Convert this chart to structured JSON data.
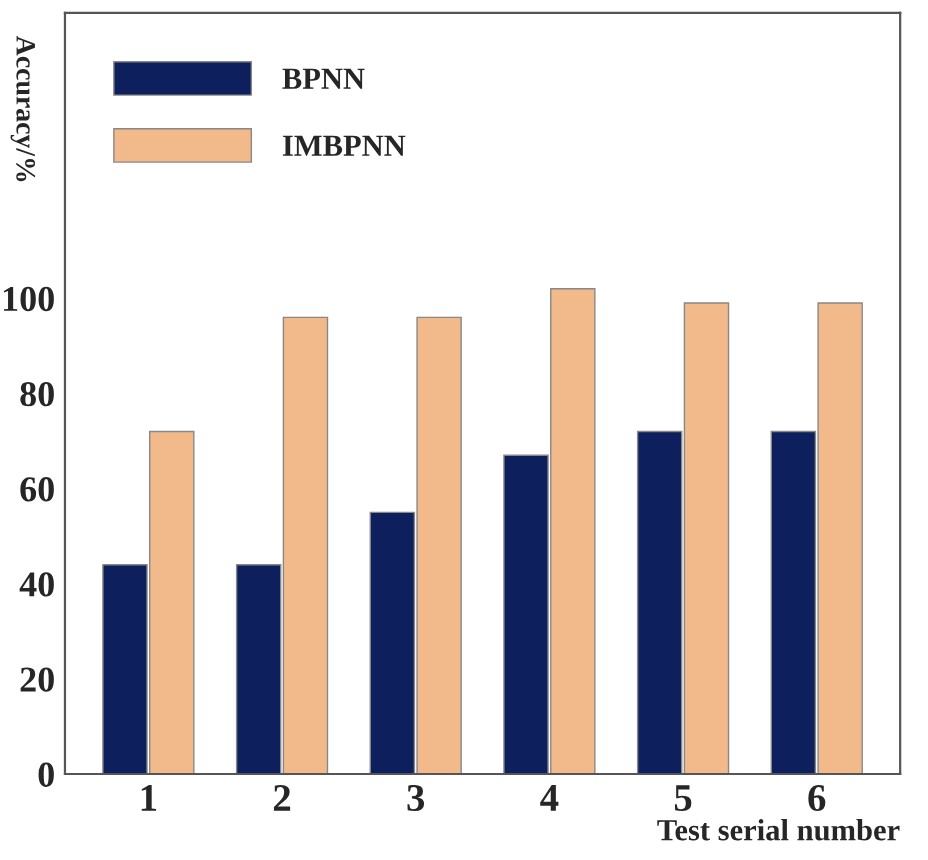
{
  "chart_data": {
    "type": "bar",
    "xlabel": "Test serial number",
    "ylabel": "Accuracy/%",
    "categories": [
      "1",
      "2",
      "3",
      "4",
      "5",
      "6"
    ],
    "series": [
      {
        "name": "BPNN",
        "color": "#0d1f5c",
        "values": [
          44,
          44,
          55,
          67,
          72,
          72
        ]
      },
      {
        "name": "IMBPNN",
        "color": "#f2b98a",
        "values": [
          72,
          96,
          96,
          102,
          99,
          99
        ]
      }
    ],
    "ylim": [
      0,
      160
    ],
    "yticks": [
      0,
      20,
      40,
      60,
      80,
      100
    ],
    "grid": false,
    "legend": "top left"
  }
}
